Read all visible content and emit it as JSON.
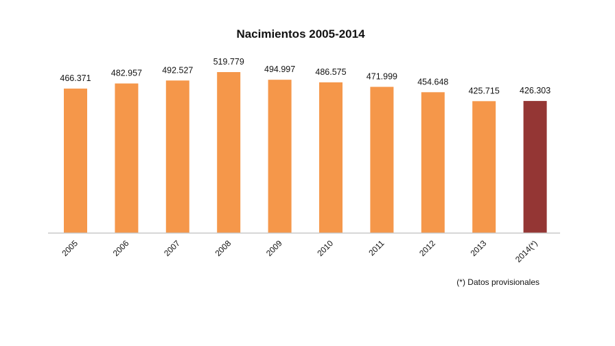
{
  "chart_data": {
    "type": "bar",
    "title": "Nacimientos 2005-2014",
    "categories": [
      "2005",
      "2006",
      "2007",
      "2008",
      "2009",
      "2010",
      "2011",
      "2012",
      "2013",
      "2014(*)"
    ],
    "values": [
      466371,
      482957,
      492527,
      519779,
      494997,
      486575,
      471999,
      454648,
      425715,
      426303
    ],
    "data_labels": [
      "466.371",
      "482.957",
      "492.527",
      "519.779",
      "494.997",
      "486.575",
      "471.999",
      "454.648",
      "425.715",
      "426.303"
    ],
    "colors": [
      "#f5974a",
      "#f5974a",
      "#f5974a",
      "#f5974a",
      "#f5974a",
      "#f5974a",
      "#f5974a",
      "#f5974a",
      "#f5974a",
      "#943634"
    ],
    "xlabel": "",
    "ylabel": "",
    "ylim": [
      0,
      560000
    ],
    "grid": false,
    "legend": "none",
    "footnote": "(*) Datos provisionales"
  }
}
